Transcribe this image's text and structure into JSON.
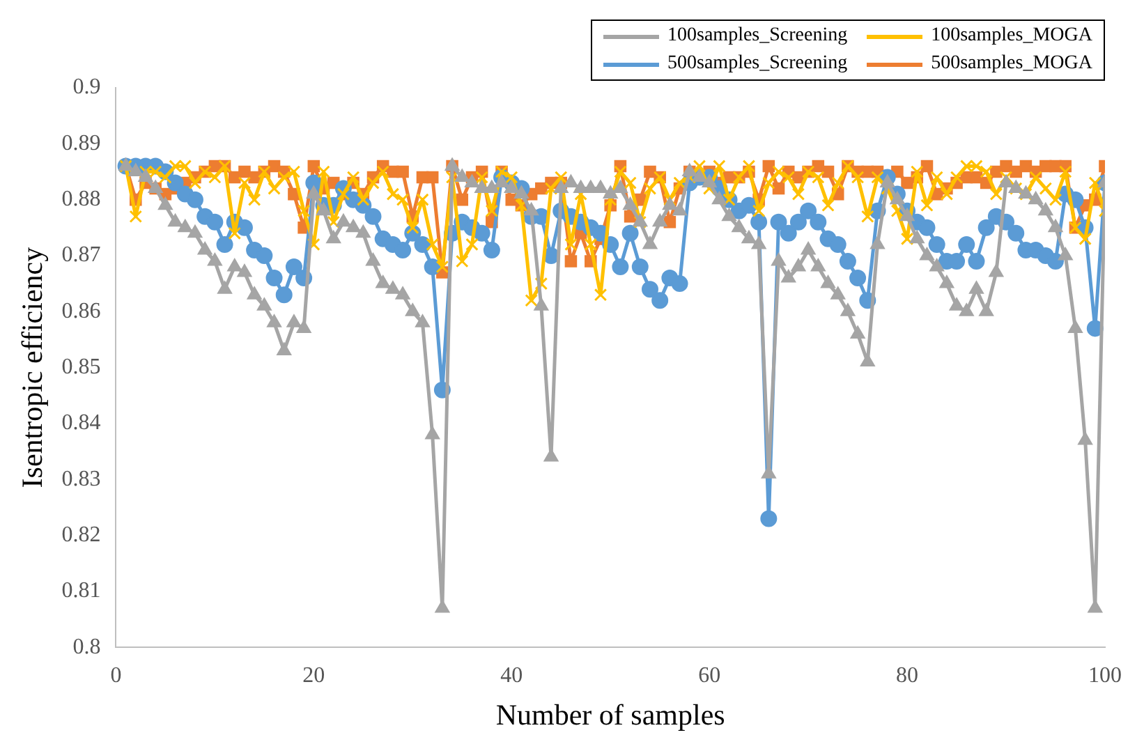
{
  "chart_data": {
    "type": "line",
    "xlabel": "Number of samples",
    "ylabel": "Isentropic efficiency",
    "x": [
      1,
      2,
      3,
      4,
      5,
      6,
      7,
      8,
      9,
      10,
      11,
      12,
      13,
      14,
      15,
      16,
      17,
      18,
      19,
      20,
      21,
      22,
      23,
      24,
      25,
      26,
      27,
      28,
      29,
      30,
      31,
      32,
      33,
      34,
      35,
      36,
      37,
      38,
      39,
      40,
      41,
      42,
      43,
      44,
      45,
      46,
      47,
      48,
      49,
      50,
      51,
      52,
      53,
      54,
      55,
      56,
      57,
      58,
      59,
      60,
      61,
      62,
      63,
      64,
      65,
      66,
      67,
      68,
      69,
      70,
      71,
      72,
      73,
      74,
      75,
      76,
      77,
      78,
      79,
      80,
      81,
      82,
      83,
      84,
      85,
      86,
      87,
      88,
      89,
      90,
      91,
      92,
      93,
      94,
      95,
      96,
      97,
      98,
      99,
      100
    ],
    "xlim": [
      0,
      100
    ],
    "xticks": [
      0,
      20,
      40,
      60,
      80,
      100
    ],
    "ylim": [
      0.8,
      0.9
    ],
    "yticks": [
      0.8,
      0.81,
      0.82,
      0.83,
      0.84,
      0.85,
      0.86,
      0.87,
      0.88,
      0.89,
      0.9
    ],
    "grid": false,
    "legend": "top right",
    "series": [
      {
        "name": "100samples_Screening",
        "color": "#a5a5a5",
        "marker": "triangle",
        "values": [
          0.886,
          0.885,
          0.884,
          0.882,
          0.879,
          0.876,
          0.875,
          0.874,
          0.871,
          0.869,
          0.864,
          0.868,
          0.867,
          0.863,
          0.861,
          0.858,
          0.853,
          0.858,
          0.857,
          0.881,
          0.878,
          0.873,
          0.876,
          0.875,
          0.874,
          0.869,
          0.865,
          0.864,
          0.863,
          0.86,
          0.858,
          0.838,
          0.807,
          0.886,
          0.884,
          0.883,
          0.882,
          0.882,
          0.883,
          0.882,
          0.881,
          0.878,
          0.861,
          0.834,
          0.882,
          0.883,
          0.882,
          0.882,
          0.882,
          0.881,
          0.882,
          0.879,
          0.876,
          0.872,
          0.876,
          0.879,
          0.878,
          0.885,
          0.884,
          0.883,
          0.88,
          0.877,
          0.875,
          0.873,
          0.872,
          0.831,
          0.869,
          0.866,
          0.868,
          0.871,
          0.868,
          0.865,
          0.863,
          0.86,
          0.856,
          0.851,
          0.872,
          0.883,
          0.88,
          0.877,
          0.873,
          0.87,
          0.868,
          0.865,
          0.861,
          0.86,
          0.864,
          0.86,
          0.867,
          0.883,
          0.882,
          0.881,
          0.88,
          0.878,
          0.875,
          0.87,
          0.857,
          0.837,
          0.807,
          0.883
        ]
      },
      {
        "name": "100samples_MOGA",
        "color": "#ffc000",
        "marker": "cross",
        "values": [
          0.886,
          0.877,
          0.885,
          0.885,
          0.884,
          0.886,
          0.886,
          0.883,
          0.885,
          0.884,
          0.886,
          0.874,
          0.883,
          0.88,
          0.885,
          0.882,
          0.884,
          0.885,
          0.878,
          0.872,
          0.885,
          0.876,
          0.881,
          0.884,
          0.88,
          0.883,
          0.885,
          0.881,
          0.88,
          0.875,
          0.88,
          0.872,
          0.868,
          0.884,
          0.869,
          0.872,
          0.884,
          0.878,
          0.885,
          0.884,
          0.879,
          0.862,
          0.865,
          0.882,
          0.884,
          0.872,
          0.881,
          0.872,
          0.863,
          0.88,
          0.885,
          0.883,
          0.876,
          0.882,
          0.884,
          0.88,
          0.883,
          0.884,
          0.886,
          0.882,
          0.886,
          0.88,
          0.884,
          0.886,
          0.878,
          0.883,
          0.885,
          0.884,
          0.881,
          0.885,
          0.884,
          0.879,
          0.883,
          0.886,
          0.884,
          0.877,
          0.884,
          0.882,
          0.878,
          0.873,
          0.885,
          0.879,
          0.884,
          0.881,
          0.884,
          0.886,
          0.886,
          0.885,
          0.881,
          0.884,
          0.882,
          0.881,
          0.884,
          0.882,
          0.88,
          0.885,
          0.875,
          0.873,
          0.883,
          0.878
        ]
      },
      {
        "name": "500samples_Screening",
        "color": "#5b9bd5",
        "marker": "circle",
        "values": [
          0.886,
          0.886,
          0.886,
          0.886,
          0.885,
          0.883,
          0.881,
          0.88,
          0.877,
          0.876,
          0.872,
          0.876,
          0.875,
          0.871,
          0.87,
          0.866,
          0.863,
          0.868,
          0.866,
          0.883,
          0.879,
          0.879,
          0.882,
          0.88,
          0.879,
          0.877,
          0.873,
          0.872,
          0.871,
          0.874,
          0.872,
          0.868,
          0.846,
          0.874,
          0.876,
          0.875,
          0.874,
          0.871,
          0.884,
          0.883,
          0.882,
          0.877,
          0.877,
          0.87,
          0.878,
          0.877,
          0.876,
          0.875,
          0.874,
          0.872,
          0.868,
          0.874,
          0.868,
          0.864,
          0.862,
          0.866,
          0.865,
          0.883,
          0.884,
          0.884,
          0.882,
          0.88,
          0.878,
          0.879,
          0.876,
          0.823,
          0.876,
          0.874,
          0.876,
          0.878,
          0.876,
          0.873,
          0.872,
          0.869,
          0.866,
          0.862,
          0.878,
          0.884,
          0.881,
          0.878,
          0.876,
          0.875,
          0.872,
          0.869,
          0.869,
          0.872,
          0.869,
          0.875,
          0.877,
          0.876,
          0.874,
          0.871,
          0.871,
          0.87,
          0.869,
          0.881,
          0.88,
          0.875,
          0.857,
          0.883
        ]
      },
      {
        "name": "500samples_MOGA",
        "color": "#ed7d31",
        "marker": "square",
        "values": [
          0.886,
          0.88,
          0.883,
          0.882,
          0.881,
          0.882,
          0.883,
          0.884,
          0.885,
          0.886,
          0.886,
          0.884,
          0.885,
          0.884,
          0.885,
          0.886,
          0.885,
          0.881,
          0.875,
          0.886,
          0.882,
          0.883,
          0.881,
          0.883,
          0.881,
          0.884,
          0.886,
          0.885,
          0.885,
          0.877,
          0.884,
          0.884,
          0.867,
          0.886,
          0.88,
          0.884,
          0.885,
          0.876,
          0.885,
          0.88,
          0.879,
          0.881,
          0.882,
          0.883,
          0.883,
          0.869,
          0.874,
          0.869,
          0.873,
          0.879,
          0.886,
          0.877,
          0.88,
          0.885,
          0.884,
          0.876,
          0.882,
          0.885,
          0.884,
          0.885,
          0.883,
          0.884,
          0.884,
          0.885,
          0.88,
          0.886,
          0.882,
          0.885,
          0.884,
          0.885,
          0.886,
          0.885,
          0.881,
          0.886,
          0.885,
          0.885,
          0.885,
          0.884,
          0.885,
          0.883,
          0.884,
          0.886,
          0.881,
          0.882,
          0.883,
          0.884,
          0.884,
          0.883,
          0.885,
          0.886,
          0.885,
          0.886,
          0.885,
          0.886,
          0.886,
          0.886,
          0.875,
          0.879,
          0.88,
          0.886
        ]
      }
    ]
  }
}
